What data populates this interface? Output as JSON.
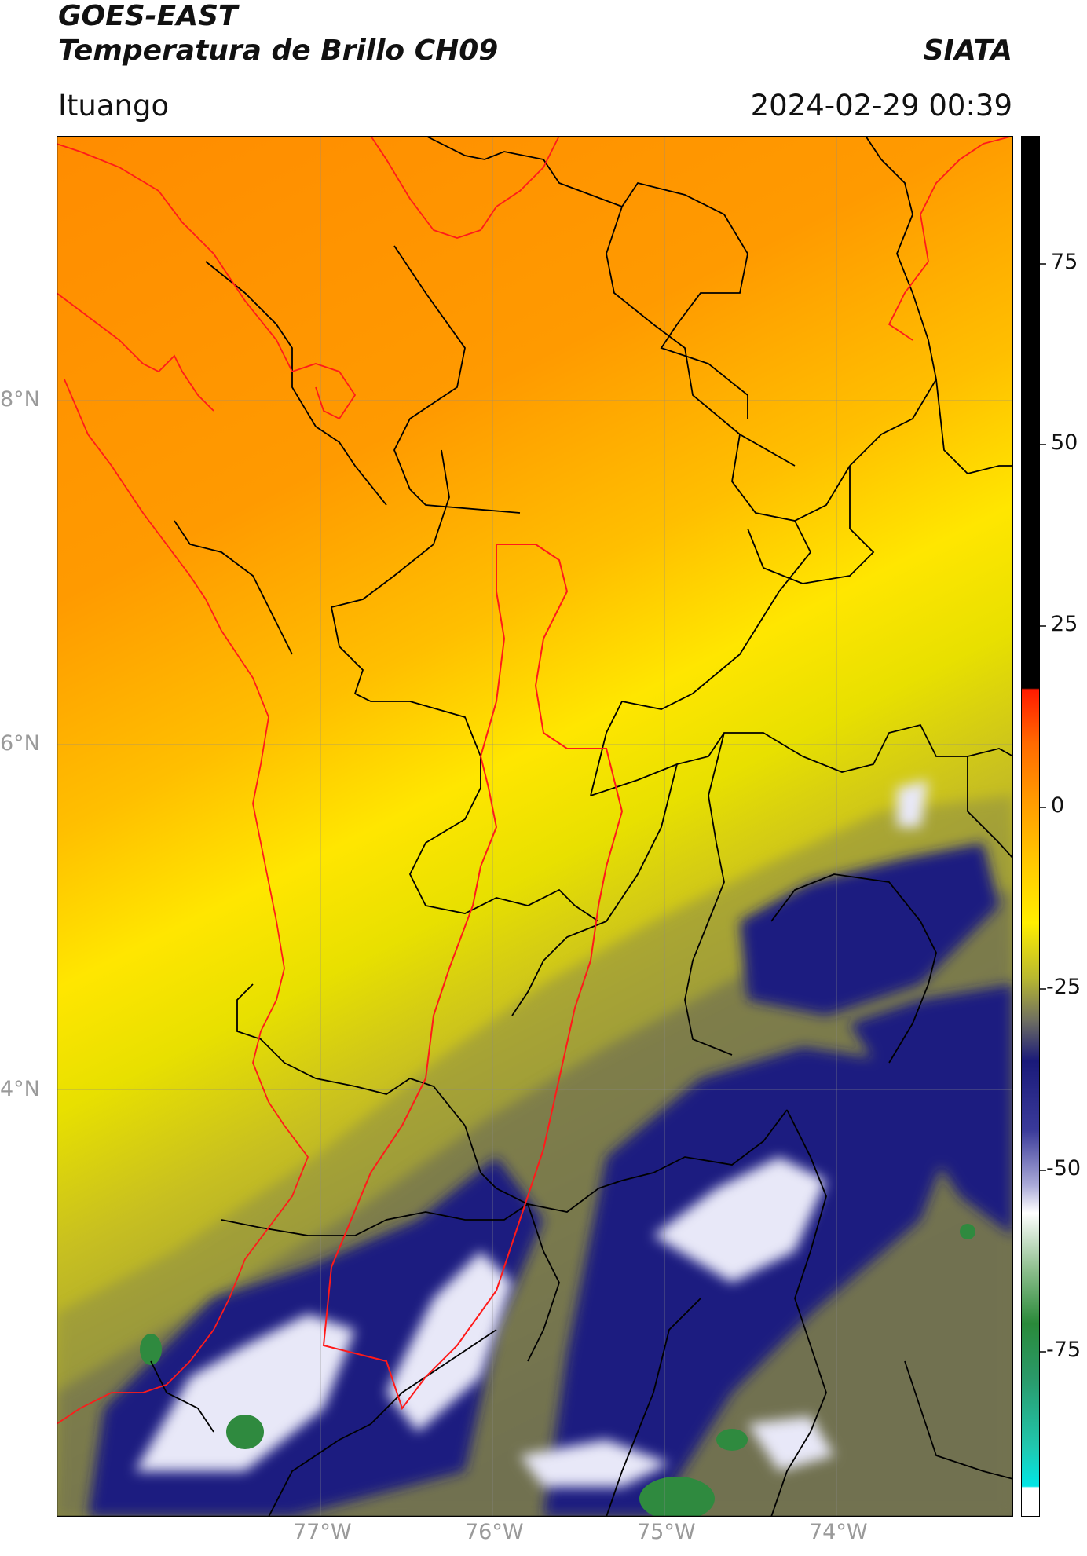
{
  "header": {
    "satellite": "GOES-EAST",
    "product": "Temperatura de Brillo CH09",
    "agency": "SIATA",
    "region": "Ituango",
    "datetime": "2024-02-29 00:39"
  },
  "map": {
    "lat_labels": [
      "8°N",
      "6°N",
      "4°N"
    ],
    "lon_labels": [
      "77°W",
      "76°W",
      "75°W",
      "74°W"
    ]
  },
  "colorbar": {
    "tick_labels": [
      "75",
      "50",
      "25",
      "0",
      "-25",
      "-50",
      "-75"
    ],
    "colors": {
      "black": "#000000",
      "red": "#ff1a00",
      "orange": "#ff9900",
      "yellow": "#ffee00",
      "olive": "#9a9a3a",
      "navy": "#1a1a7a",
      "white": "#ffffff",
      "green": "#2a8a3a",
      "cyan": "#00e6e6"
    }
  }
}
